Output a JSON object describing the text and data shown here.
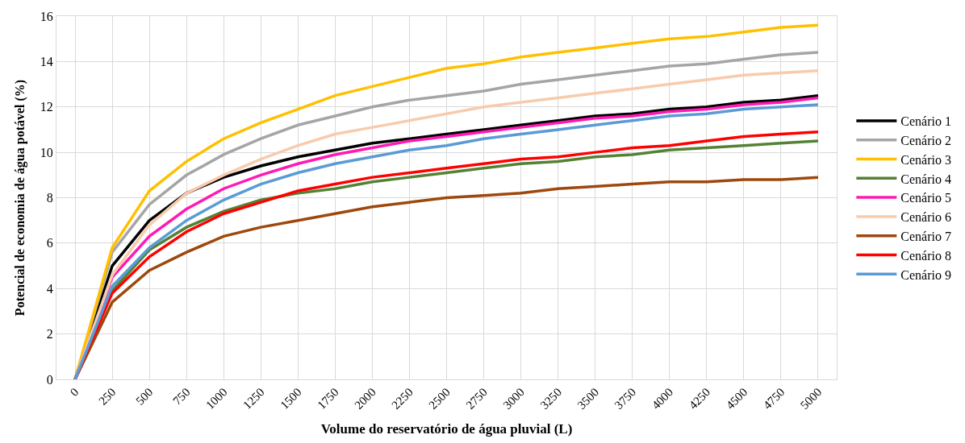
{
  "chart_data": {
    "type": "line",
    "xlabel": "Volume do reservatório de água pluvial (L)",
    "ylabel": "Potencial de economia de água potável (%)",
    "categories": [
      "0",
      "250",
      "500",
      "750",
      "1000",
      "1250",
      "1500",
      "1750",
      "2000",
      "2250",
      "2500",
      "2750",
      "3000",
      "3250",
      "3500",
      "3750",
      "4000",
      "4250",
      "4500",
      "4750",
      "5000"
    ],
    "ylim": [
      0,
      16
    ],
    "yticks": [
      0,
      2,
      4,
      6,
      8,
      10,
      12,
      14,
      16
    ],
    "grid": true,
    "legend": "right",
    "marker": "none",
    "line_style": "solid",
    "series": [
      {
        "name": "Cenário 1",
        "color": "#000000",
        "values": [
          0,
          5.0,
          7.0,
          8.2,
          8.9,
          9.4,
          9.8,
          10.1,
          10.4,
          10.6,
          10.8,
          11.0,
          11.2,
          11.4,
          11.6,
          11.7,
          11.9,
          12.0,
          12.2,
          12.3,
          12.5
        ]
      },
      {
        "name": "Cenário 2",
        "color": "#a5a5a5",
        "values": [
          0,
          5.6,
          7.7,
          9.0,
          9.9,
          10.6,
          11.2,
          11.6,
          12.0,
          12.3,
          12.5,
          12.7,
          13.0,
          13.2,
          13.4,
          13.6,
          13.8,
          13.9,
          14.1,
          14.3,
          14.4
        ]
      },
      {
        "name": "Cenário 3",
        "color": "#ffc000",
        "values": [
          0,
          5.8,
          8.3,
          9.6,
          10.6,
          11.3,
          11.9,
          12.5,
          12.9,
          13.3,
          13.7,
          13.9,
          14.2,
          14.4,
          14.6,
          14.8,
          15.0,
          15.1,
          15.3,
          15.5,
          15.6
        ]
      },
      {
        "name": "Cenário 4",
        "color": "#548235",
        "values": [
          0,
          3.9,
          5.7,
          6.7,
          7.4,
          7.9,
          8.2,
          8.4,
          8.7,
          8.9,
          9.1,
          9.3,
          9.5,
          9.6,
          9.8,
          9.9,
          10.1,
          10.2,
          10.3,
          10.4,
          10.5
        ]
      },
      {
        "name": "Cenário 5",
        "color": "#ff1ab3",
        "values": [
          0,
          4.5,
          6.3,
          7.5,
          8.4,
          9.0,
          9.5,
          9.9,
          10.2,
          10.5,
          10.7,
          10.9,
          11.1,
          11.3,
          11.5,
          11.6,
          11.8,
          11.9,
          12.1,
          12.2,
          12.4
        ]
      },
      {
        "name": "Cenário 6",
        "color": "#f8cbad",
        "values": [
          0,
          4.6,
          6.8,
          8.2,
          9.0,
          9.7,
          10.3,
          10.8,
          11.1,
          11.4,
          11.7,
          12.0,
          12.2,
          12.4,
          12.6,
          12.8,
          13.0,
          13.2,
          13.4,
          13.5,
          13.6
        ]
      },
      {
        "name": "Cenário 7",
        "color": "#9e480e",
        "values": [
          0,
          3.4,
          4.8,
          5.6,
          6.3,
          6.7,
          7.0,
          7.3,
          7.6,
          7.8,
          8.0,
          8.1,
          8.2,
          8.4,
          8.5,
          8.6,
          8.7,
          8.7,
          8.8,
          8.8,
          8.9
        ]
      },
      {
        "name": "Cenário 8",
        "color": "#ff0000",
        "values": [
          0,
          3.8,
          5.4,
          6.5,
          7.3,
          7.8,
          8.3,
          8.6,
          8.9,
          9.1,
          9.3,
          9.5,
          9.7,
          9.8,
          10.0,
          10.2,
          10.3,
          10.5,
          10.7,
          10.8,
          10.9
        ]
      },
      {
        "name": "Cenário 9",
        "color": "#5b9bd5",
        "values": [
          0,
          4.1,
          5.8,
          7.0,
          7.9,
          8.6,
          9.1,
          9.5,
          9.8,
          10.1,
          10.3,
          10.6,
          10.8,
          11.0,
          11.2,
          11.4,
          11.6,
          11.7,
          11.9,
          12.0,
          12.1
        ]
      }
    ]
  }
}
